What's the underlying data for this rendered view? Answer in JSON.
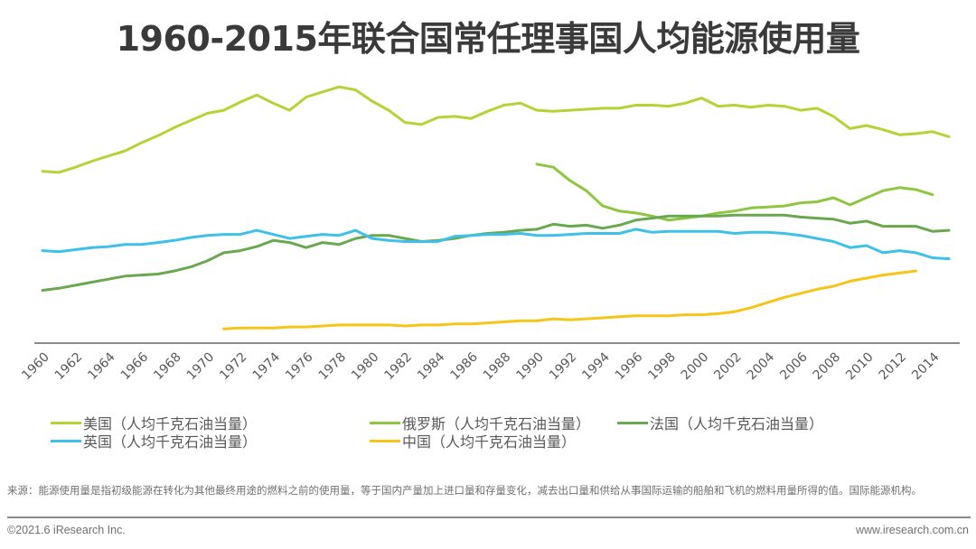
{
  "title": "1960-2015年联合国常任理事国人均能源使用量",
  "chart_data": {
    "type": "line",
    "title": "1960-2015年联合国常任理事国人均能源使用量",
    "xlabel": "",
    "ylabel": "",
    "unit": "人均千克石油当量",
    "grid": false,
    "legend_position": "bottom",
    "x_ticks": [
      "1960",
      "1962",
      "1964",
      "1966",
      "1968",
      "1970",
      "1972",
      "1974",
      "1976",
      "1978",
      "1980",
      "1982",
      "1984",
      "1986",
      "1988",
      "1990",
      "1992",
      "1994",
      "1996",
      "1998",
      "2000",
      "2002",
      "2004",
      "2006",
      "2008",
      "2010",
      "2012",
      "2014"
    ],
    "xlim": [
      1960,
      2015
    ],
    "ylim": [
      0,
      8500
    ],
    "series": [
      {
        "name": "美国（人均千克石油当量）",
        "color": "#b5d334",
        "start_year": 1960,
        "values": [
          5645,
          5611,
          5779,
          5981,
          6149,
          6317,
          6586,
          6821,
          7090,
          7325,
          7560,
          7661,
          7930,
          8165,
          7896,
          7661,
          8098,
          8266,
          8434,
          8333,
          7963,
          7661,
          7258,
          7190,
          7426,
          7459,
          7392,
          7627,
          7829,
          7896,
          7661,
          7627,
          7661,
          7694,
          7728,
          7728,
          7829,
          7829,
          7795,
          7896,
          8064,
          7795,
          7829,
          7762,
          7829,
          7795,
          7661,
          7728,
          7459,
          7056,
          7157,
          7022,
          6854,
          6888,
          6955,
          6787
        ]
      },
      {
        "name": "俄罗斯（人均千克石油当量）",
        "color": "#8dc63f",
        "start_year": 1990,
        "values": [
          5880,
          5779,
          5342,
          5006,
          4502,
          4334,
          4267,
          4166,
          4032,
          4099,
          4166,
          4267,
          4334,
          4435,
          4469,
          4502,
          4603,
          4637,
          4771,
          4536,
          4771,
          5006,
          5107,
          5040,
          4872
        ]
      },
      {
        "name": "法国（人均千克石油当量）",
        "color": "#6aa84f",
        "start_year": 1960,
        "values": [
          1714,
          1781,
          1882,
          1982,
          2083,
          2184,
          2218,
          2251,
          2352,
          2486,
          2688,
          2957,
          3024,
          3158,
          3360,
          3293,
          3125,
          3293,
          3226,
          3427,
          3528,
          3528,
          3427,
          3326,
          3360,
          3427,
          3528,
          3595,
          3629,
          3696,
          3730,
          3898,
          3830,
          3864,
          3763,
          3864,
          4032,
          4099,
          4166,
          4166,
          4166,
          4166,
          4200,
          4200,
          4200,
          4200,
          4133,
          4099,
          4065,
          3931,
          3998,
          3830,
          3830,
          3830,
          3662,
          3696
        ]
      },
      {
        "name": "英国（人均千克石油当量）",
        "color": "#3dc1e8",
        "start_year": 1960,
        "values": [
          3024,
          2990,
          3058,
          3125,
          3158,
          3226,
          3226,
          3293,
          3360,
          3461,
          3528,
          3562,
          3562,
          3696,
          3562,
          3427,
          3494,
          3562,
          3528,
          3696,
          3427,
          3360,
          3326,
          3326,
          3326,
          3494,
          3528,
          3562,
          3562,
          3595,
          3528,
          3528,
          3562,
          3595,
          3595,
          3595,
          3730,
          3629,
          3662,
          3662,
          3662,
          3662,
          3595,
          3629,
          3629,
          3595,
          3528,
          3427,
          3326,
          3125,
          3192,
          2957,
          3024,
          2957,
          2789,
          2755
        ]
      },
      {
        "name": "中国（人均千克石油当量）",
        "color": "#f5c518",
        "start_year": 1971,
        "values": [
          437,
          470,
          470,
          470,
          504,
          504,
          538,
          571,
          571,
          571,
          571,
          538,
          571,
          571,
          605,
          605,
          638,
          672,
          706,
          706,
          773,
          739,
          773,
          806,
          840,
          874,
          874,
          874,
          907,
          907,
          941,
          1008,
          1142,
          1310,
          1478,
          1613,
          1747,
          1848,
          2016,
          2117,
          2218,
          2285,
          2352
        ]
      }
    ]
  },
  "note": "来源：能源使用量是指初级能源在转化为其他最终用途的燃料之前的使用量，等于国内产量加上进口量和存量变化，减去出口量和供给从事国际运输的船舶和飞机的燃料用量所得的值。国际能源机构。",
  "footer": {
    "copyright": "©2021.6 iResearch Inc.",
    "website": "www.iresearch.com.cn"
  }
}
